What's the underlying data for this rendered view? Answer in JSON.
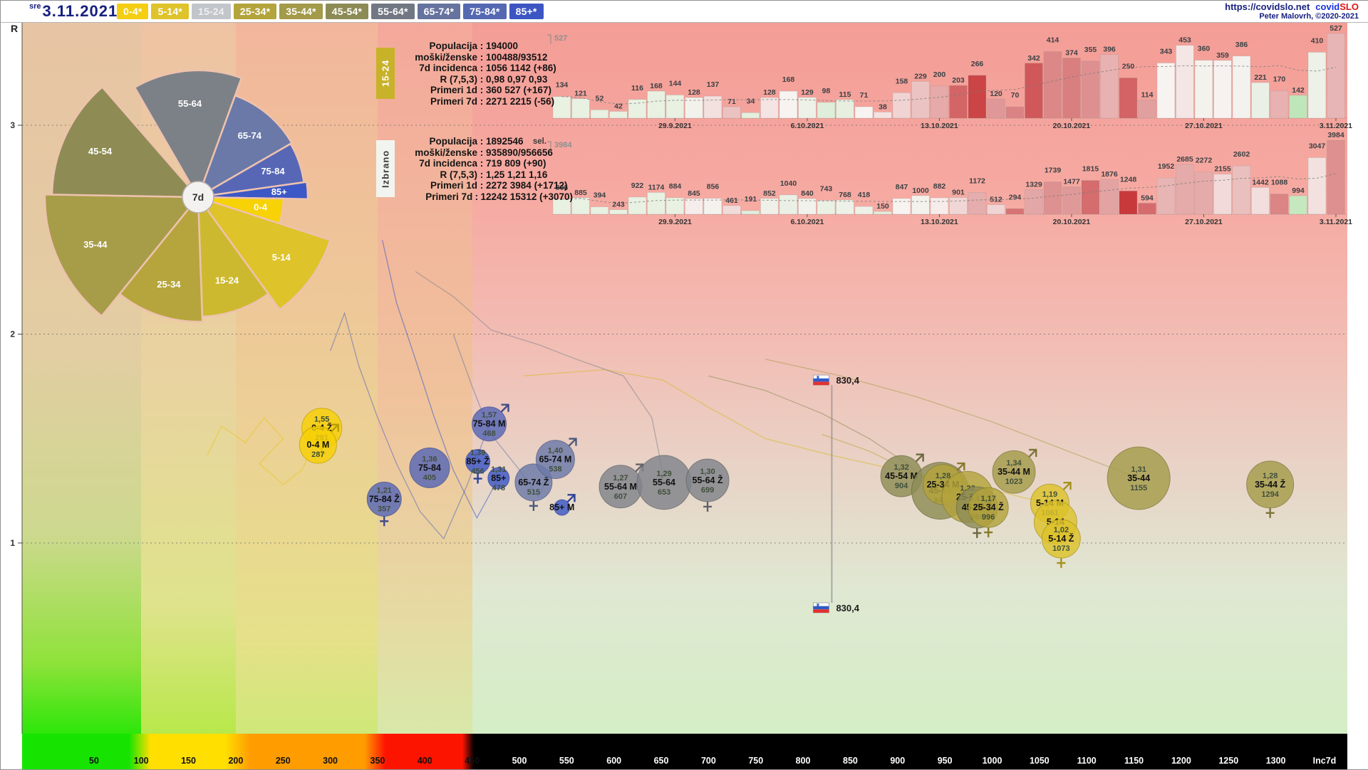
{
  "meta": {
    "weekday": "sre",
    "date": "3.11.2021",
    "url": "https://covidslo.net",
    "brand_covid": "covid",
    "brand_slo": "SLO",
    "credit": "Peter Malovrh, ©2020-2021"
  },
  "sel_label": "sel.",
  "colors": {
    "0-4": "#f6d005",
    "5-14": "#ddc22a",
    "15-24": "#c4c8cd",
    "25-34": "#b3a43c",
    "35-44": "#a59c4a",
    "45-54": "#8e8c55",
    "55-64": "#80848b",
    "65-74": "#6b79a8",
    "75-84": "#5767b6",
    "85+": "#3c57c6",
    "grid": "#6a6a6a",
    "bar_label": "#3c4043",
    "axis_gray": "#8a8a8a"
  },
  "topbar": {
    "buttons": [
      {
        "label": "0-4*",
        "bg": "#f4ce12",
        "fg": "#ffffff",
        "selected": false
      },
      {
        "label": "5-14*",
        "bg": "#dfc32a",
        "fg": "#ffffff",
        "selected": false
      },
      {
        "label": "15-24",
        "bg": "#c2c6cb",
        "fg": "#eef0f2",
        "selected": true
      },
      {
        "label": "25-34*",
        "bg": "#b4a43c",
        "fg": "#ffffff",
        "selected": false
      },
      {
        "label": "35-44*",
        "bg": "#a39a4a",
        "fg": "#ffffff",
        "selected": false
      },
      {
        "label": "45-54*",
        "bg": "#8d8b55",
        "fg": "#ffffff",
        "selected": false
      },
      {
        "label": "55-64*",
        "bg": "#717783",
        "fg": "#ffffff",
        "selected": false
      },
      {
        "label": "65-74*",
        "bg": "#66739e",
        "fg": "#ffffff",
        "selected": false
      },
      {
        "label": "75-84*",
        "bg": "#5568b2",
        "fg": "#ffffff",
        "selected": false
      },
      {
        "label": "85+*",
        "bg": "#3d55c3",
        "fg": "#ffffff",
        "selected": false
      }
    ]
  },
  "info_boxes": [
    {
      "tab": "15-24",
      "rows": [
        {
          "label": "Populacija",
          "value": "194000"
        },
        {
          "label": "moški/ženske",
          "value": "100488/93512"
        },
        {
          "label": "7d incidenca",
          "value": "1056 1142 (+86)"
        },
        {
          "label": "R (7,5,3)",
          "value": "0,98 0,97 0,93"
        },
        {
          "label": "Primeri 1d",
          "value": "360 527 (+167)"
        },
        {
          "label": "Primeri 7d",
          "value": "2271 2215 (-56)"
        }
      ]
    },
    {
      "tab": "Izbrano",
      "rows": [
        {
          "label": "Populacija",
          "value": "1892546"
        },
        {
          "label": "moški/ženske",
          "value": "935890/956656"
        },
        {
          "label": "7d incidenca",
          "value": "719 809 (+90)"
        },
        {
          "label": "R (7,5,3)",
          "value": "1,25 1,21 1,16"
        },
        {
          "label": "Primeri 1d",
          "value": "2272 3984 (+1712)"
        },
        {
          "label": "Primeri 7d",
          "value": "12242 15312 (+3070)"
        }
      ]
    }
  ],
  "fan": {
    "center_label": "7d",
    "wedges": [
      {
        "label": "55-64",
        "span": 50,
        "radius": 178,
        "color": "#7c8187"
      },
      {
        "label": "65-74",
        "span": 40,
        "radius": 152,
        "color": "#6b79a8"
      },
      {
        "label": "75-84",
        "span": 22,
        "radius": 150,
        "color": "#5767b6"
      },
      {
        "label": "85+",
        "span": 9,
        "radius": 154,
        "color": "#3c57c6"
      },
      {
        "label": "0-4",
        "span": 17,
        "radius": 120,
        "color": "#f7d206"
      },
      {
        "label": "5-14",
        "span": 36,
        "radius": 195,
        "color": "#dec32a"
      },
      {
        "label": "15-24",
        "span": 34,
        "radius": 168,
        "color": "#cdb92f"
      },
      {
        "label": "25-34",
        "span": 41,
        "radius": 175,
        "color": "#b5a53c"
      },
      {
        "label": "35-44",
        "span": 52,
        "radius": 215,
        "color": "#a79d49"
      },
      {
        "label": "45-54",
        "span": 48,
        "radius": 205,
        "color": "#8e8c54"
      }
    ]
  },
  "chart_data": [
    {
      "type": "bar",
      "title": "",
      "group": "15-24",
      "values": [
        134,
        121,
        52,
        42,
        116,
        168,
        144,
        128,
        137,
        71,
        34,
        128,
        168,
        129,
        98,
        115,
        71,
        38,
        158,
        229,
        200,
        203,
        266,
        120,
        70,
        342,
        414,
        374,
        355,
        396,
        250,
        114,
        343,
        453,
        360,
        359,
        386,
        221,
        170,
        142,
        410,
        527
      ],
      "max_label": "527",
      "x_tick_labels": [
        "29.9.2021",
        "6.10.2021",
        "13.10.2021",
        "20.10.2021",
        "27.10.2021",
        "3.11.2021"
      ],
      "x_tick_indices": [
        6,
        13,
        20,
        27,
        34,
        41
      ],
      "ylim": [
        0,
        527
      ]
    },
    {
      "type": "bar",
      "title": "",
      "group": "Izbrano",
      "values": [
        806,
        885,
        394,
        243,
        922,
        1174,
        884,
        845,
        856,
        461,
        191,
        852,
        1040,
        840,
        743,
        768,
        418,
        150,
        847,
        1000,
        882,
        901,
        1172,
        512,
        294,
        1329,
        1739,
        1477,
        1815,
        1876,
        1248,
        594,
        1952,
        2685,
        2272,
        2155,
        2602,
        1442,
        1088,
        994,
        3047,
        3984
      ],
      "max_label": "3984",
      "x_tick_labels": [
        "29.9.2021",
        "6.10.2021",
        "13.10.2021",
        "20.10.2021",
        "27.10.2021",
        "3.11.2021"
      ],
      "x_tick_indices": [
        6,
        13,
        20,
        27,
        34,
        41
      ],
      "ylim": [
        0,
        3984
      ]
    },
    {
      "type": "scatter",
      "title": "",
      "xlabel": "Inc7d",
      "ylabel": "R",
      "x_ticks": [
        50,
        100,
        150,
        200,
        250,
        300,
        350,
        400,
        450,
        500,
        550,
        600,
        650,
        700,
        750,
        800,
        850,
        900,
        950,
        1000,
        1050,
        1100,
        1150,
        1200,
        1250,
        1300
      ],
      "y_ticks": [
        1,
        2,
        3
      ],
      "national_marker": {
        "label": "830,4",
        "inc": 830.4,
        "r_top": 1.78,
        "r_bottom": 0.69
      },
      "bubbles": [
        {
          "age": "0-4",
          "sex": "Z",
          "name_label": "0-4 Ž",
          "r_label": "1,55",
          "R": 1.55,
          "inc": 291,
          "inc_label": "291",
          "size": 28
        },
        {
          "age": "0-4",
          "sex": "M",
          "name_label": "0-4 M",
          "r_label": "",
          "R": 1.47,
          "inc": 287,
          "inc_label": "287",
          "size": 26
        },
        {
          "age": "75-84",
          "sex": "Z",
          "name_label": "75-84 Ž",
          "r_label": "1,21",
          "R": 1.21,
          "inc": 357,
          "inc_label": "357",
          "size": 24
        },
        {
          "age": "75-84",
          "sex": "",
          "name_label": "75-84",
          "r_label": "1,36",
          "R": 1.36,
          "inc": 405,
          "inc_label": "405",
          "size": 28
        },
        {
          "age": "85+",
          "sex": "Z",
          "name_label": "85+ Ž",
          "r_label": "1,39",
          "R": 1.39,
          "inc": 456,
          "inc_label": "456",
          "size": 17
        },
        {
          "age": "75-84",
          "sex": "M",
          "name_label": "75-84 M",
          "r_label": "1,57",
          "R": 1.57,
          "inc": 468,
          "inc_label": "468",
          "size": 24
        },
        {
          "age": "85+",
          "sex": "",
          "name_label": "85+",
          "r_label": "1,31",
          "R": 1.31,
          "inc": 478,
          "inc_label": "478",
          "size": 15
        },
        {
          "age": "65-74",
          "sex": "Z",
          "name_label": "65-74 Ž",
          "r_label": "",
          "R": 1.29,
          "inc": 515,
          "inc_label": "515",
          "size": 26
        },
        {
          "age": "65-74",
          "sex": "M",
          "name_label": "65-74 M",
          "r_label": "1,40",
          "R": 1.4,
          "inc": 538,
          "inc_label": "538",
          "size": 27
        },
        {
          "age": "85+",
          "sex": "M",
          "name_label": "85+ M",
          "r_label": "",
          "R": 1.17,
          "inc": 545,
          "inc_label": "",
          "size": 11
        },
        {
          "age": "55-64",
          "sex": "M",
          "name_label": "55-64 M",
          "r_label": "1,27",
          "R": 1.27,
          "inc": 607,
          "inc_label": "607",
          "size": 30
        },
        {
          "age": "55-64",
          "sex": "",
          "name_label": "55-64",
          "r_label": "1,29",
          "R": 1.29,
          "inc": 653,
          "inc_label": "653",
          "size": 38
        },
        {
          "age": "55-64",
          "sex": "Z",
          "name_label": "55-64 Ž",
          "r_label": "1,30",
          "R": 1.3,
          "inc": 699,
          "inc_label": "699",
          "size": 30
        },
        {
          "age": "45-54",
          "sex": "M",
          "name_label": "45-54 M",
          "r_label": "1,32",
          "R": 1.32,
          "inc": 904,
          "inc_label": "904",
          "size": 29
        },
        {
          "age": "45-54",
          "sex": "",
          "name_label": "45-54",
          "r_label": "",
          "R": 1.25,
          "inc": 945,
          "inc_label": "945",
          "size": 40
        },
        {
          "age": "25-34",
          "sex": "M",
          "name_label": "25-34 M",
          "r_label": "1,28",
          "R": 1.28,
          "inc": 948,
          "inc_label": "",
          "size": 28
        },
        {
          "age": "25-34",
          "sex": "",
          "name_label": "25-34",
          "r_label": "1,22",
          "R": 1.22,
          "inc": 974,
          "inc_label": "",
          "size": 36
        },
        {
          "age": "45-54",
          "sex": "Z",
          "name_label": "45-54 Ž",
          "r_label": "1,17",
          "R": 1.17,
          "inc": 984,
          "inc_label": "984",
          "size": 29
        },
        {
          "age": "25-34",
          "sex": "Z",
          "name_label": "25-34 Ž",
          "r_label": "1,17",
          "R": 1.17,
          "inc": 996,
          "inc_label": "996",
          "size": 28
        },
        {
          "age": "35-44",
          "sex": "M",
          "name_label": "35-44 M",
          "r_label": "1,34",
          "R": 1.34,
          "inc": 1023,
          "inc_label": "1023",
          "size": 30
        },
        {
          "age": "5-14",
          "sex": "M",
          "name_label": "5-14 M",
          "r_label": "1,19",
          "R": 1.19,
          "inc": 1061,
          "inc_label": "1061",
          "size": 27
        },
        {
          "age": "5-14",
          "sex": "",
          "name_label": "5-14",
          "r_label": "",
          "R": 1.1,
          "inc": 1067,
          "inc_label": "",
          "size": 30
        },
        {
          "age": "5-14",
          "sex": "Z",
          "name_label": "5-14 Ž",
          "r_label": "1,02",
          "R": 1.02,
          "inc": 1073,
          "inc_label": "1073",
          "size": 27
        },
        {
          "age": "35-44",
          "sex": "",
          "name_label": "35-44",
          "r_label": "1,31",
          "R": 1.31,
          "inc": 1155,
          "inc_label": "1155",
          "size": 44
        },
        {
          "age": "35-44",
          "sex": "Z",
          "name_label": "35-44 Ž",
          "r_label": "1,28",
          "R": 1.28,
          "inc": 1294,
          "inc_label": "1294",
          "size": 33
        }
      ],
      "trails": [
        {
          "group": "0-4",
          "color": "#e9c414",
          "points": [
            [
              170,
              1.42
            ],
            [
              185,
              1.56
            ],
            [
              210,
              1.48
            ],
            [
              230,
              1.6
            ],
            [
              250,
              1.5
            ],
            [
              225,
              1.38
            ],
            [
              250,
              1.28
            ],
            [
              270,
              1.35
            ],
            [
              291,
              1.55
            ]
          ]
        },
        {
          "group": "5-14",
          "color": "#d6ba22",
          "points": [
            [
              505,
              1.8
            ],
            [
              590,
              1.83
            ],
            [
              652,
              1.78
            ],
            [
              700,
              1.65
            ],
            [
              760,
              1.5
            ],
            [
              830,
              1.42
            ],
            [
              900,
              1.35
            ],
            [
              980,
              1.28
            ],
            [
              1030,
              1.22
            ],
            [
              1061,
              1.19
            ]
          ]
        },
        {
          "group": "75-84",
          "color": "#5767b6",
          "points": [
            [
              300,
              1.92
            ],
            [
              315,
              2.1
            ],
            [
              330,
              1.85
            ],
            [
              350,
              1.6
            ],
            [
              370,
              1.38
            ],
            [
              395,
              1.15
            ],
            [
              420,
              1.02
            ],
            [
              445,
              1.28
            ],
            [
              468,
              1.57
            ]
          ]
        },
        {
          "group": "85+",
          "color": "#3c57c6",
          "points": [
            [
              355,
              2.45
            ],
            [
              370,
              2.15
            ],
            [
              390,
              1.88
            ],
            [
              410,
              1.6
            ],
            [
              430,
              1.35
            ],
            [
              455,
              1.12
            ],
            [
              478,
              1.31
            ]
          ]
        },
        {
          "group": "65-74",
          "color": "#6b79a8",
          "points": [
            [
              430,
              2.0
            ],
            [
              450,
              1.75
            ],
            [
              470,
              1.52
            ],
            [
              500,
              1.35
            ],
            [
              520,
              1.22
            ],
            [
              538,
              1.4
            ]
          ]
        },
        {
          "group": "55-64",
          "color": "#80848b",
          "points": [
            [
              390,
              2.3
            ],
            [
              430,
              2.18
            ],
            [
              470,
              2.02
            ],
            [
              520,
              1.95
            ],
            [
              560,
              1.88
            ],
            [
              610,
              1.8
            ],
            [
              640,
              1.6
            ],
            [
              648,
              1.42
            ],
            [
              653,
              1.29
            ]
          ]
        },
        {
          "group": "45-54",
          "color": "#8e8c55",
          "points": [
            [
              700,
              1.8
            ],
            [
              760,
              1.73
            ],
            [
              820,
              1.62
            ],
            [
              870,
              1.5
            ],
            [
              910,
              1.38
            ],
            [
              945,
              1.25
            ]
          ]
        },
        {
          "group": "35-44",
          "color": "#a79d49",
          "points": [
            [
              760,
              1.88
            ],
            [
              840,
              1.8
            ],
            [
              920,
              1.7
            ],
            [
              1000,
              1.58
            ],
            [
              1080,
              1.44
            ],
            [
              1155,
              1.31
            ]
          ]
        },
        {
          "group": "25-34",
          "color": "#b5a53c",
          "points": [
            [
              820,
              1.52
            ],
            [
              870,
              1.44
            ],
            [
              920,
              1.33
            ],
            [
              960,
              1.24
            ],
            [
              974,
              1.22
            ]
          ]
        }
      ]
    }
  ]
}
